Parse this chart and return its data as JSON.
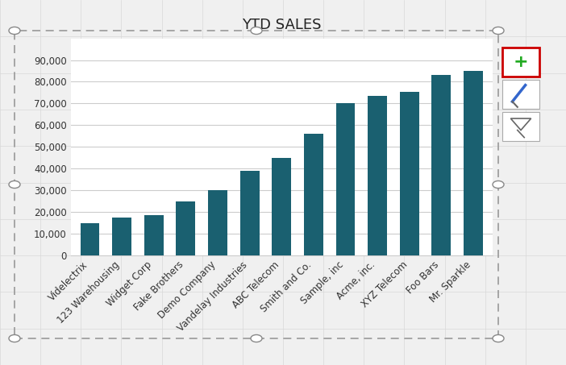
{
  "title": "YTD SALES",
  "categories": [
    "Videlectrix",
    "123 Warehousing",
    "Widget Corp",
    "Fake Brothers",
    "Demo Company",
    "Vandelay Industries",
    "ABC Telecom",
    "Smith and Co.",
    "Sample, inc",
    "Acme, inc.",
    "XYZ Telecom",
    "Foo Bars",
    "Mr. Sparkle"
  ],
  "values": [
    15000,
    17500,
    18500,
    25000,
    30000,
    39000,
    45000,
    56000,
    70000,
    73500,
    75500,
    83000,
    85000
  ],
  "bar_color": "#1a6070",
  "plot_bg_color": "#ffffff",
  "title_fontsize": 13,
  "tick_fontsize": 8.5,
  "ylim": [
    0,
    100000
  ],
  "yticks": [
    0,
    10000,
    20000,
    30000,
    40000,
    50000,
    60000,
    70000,
    80000,
    90000
  ],
  "grid_color": "#cccccc",
  "outer_bg": "#f0f0f0",
  "border_color": "#999999",
  "handle_color": "#888888",
  "btn_plus_border": "#cc0000",
  "btn_plus_color": "#22aa22",
  "btn_border": "#aaaaaa"
}
